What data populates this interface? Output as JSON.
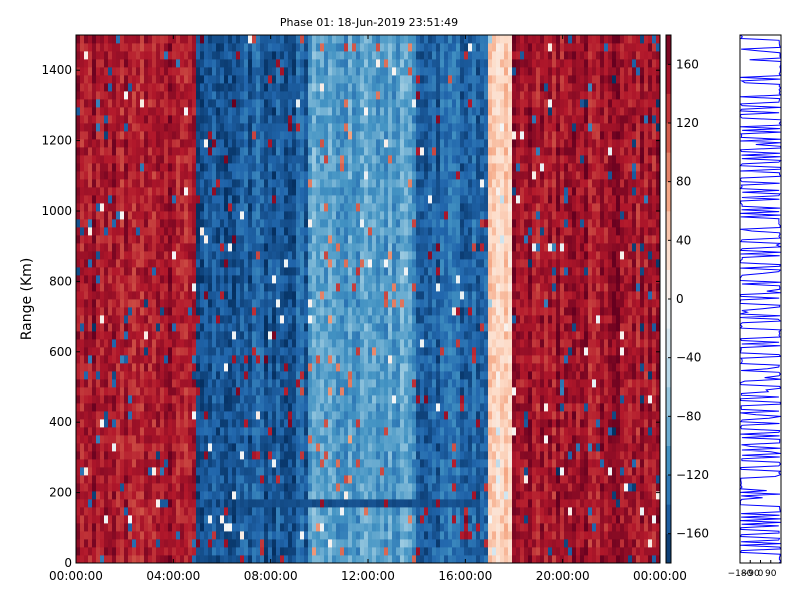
{
  "chart_data": {
    "type": "heatmap",
    "title": "Phase 01: 18-Jun-2019 23:51:49",
    "ylabel": "Range (Km)",
    "xlabel": "",
    "x_ticks": [
      "00:00:00",
      "04:00:00",
      "08:00:00",
      "12:00:00",
      "16:00:00",
      "20:00:00",
      "00:00:00"
    ],
    "x_range_hours": [
      0,
      24
    ],
    "ylim": [
      0,
      1500
    ],
    "y_ticks": [
      0,
      200,
      400,
      600,
      800,
      1000,
      1200,
      1400
    ],
    "colorbar": {
      "range": [
        -180,
        180
      ],
      "ticks": [
        160,
        120,
        80,
        40,
        0,
        -40,
        -80,
        -120,
        -160
      ],
      "colormap": "RdBu_r",
      "colors": [
        "#053061",
        "#2166ac",
        "#4393c3",
        "#92c5de",
        "#d1e5f0",
        "#f7f7f7",
        "#fddbc7",
        "#f4a582",
        "#d6604d",
        "#b2182b",
        "#67001f"
      ]
    },
    "phase_regions": [
      {
        "from_hour": 0.0,
        "to_hour": 4.9,
        "phase_deg": 150
      },
      {
        "from_hour": 4.9,
        "to_hour": 9.5,
        "phase_deg": -150
      },
      {
        "from_hour": 9.5,
        "to_hour": 14.0,
        "phase_deg": -100
      },
      {
        "from_hour": 14.0,
        "to_hour": 16.9,
        "phase_deg": -140
      },
      {
        "from_hour": 16.9,
        "to_hour": 18.0,
        "phase_deg": 40
      },
      {
        "from_hour": 18.0,
        "to_hour": 24.0,
        "phase_deg": 150
      }
    ],
    "band_feature": {
      "range_km": 160,
      "from_hour": 6.5,
      "to_hour": 16.6,
      "phase_deg": -160
    },
    "side_panel": {
      "type": "line-profile",
      "x_ticks": [
        "−180",
        "−90",
        "0",
        "90"
      ],
      "xlim": [
        -180,
        180
      ],
      "line_color": "#0000ff"
    }
  }
}
